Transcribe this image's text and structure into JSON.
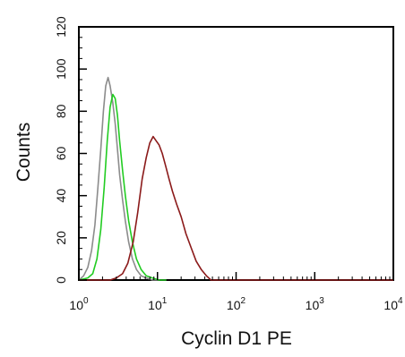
{
  "chart_data": {
    "type": "line",
    "title": "",
    "xlabel": "Cyclin D1 PE",
    "ylabel": "Counts",
    "x_scale": "log",
    "xlim": [
      1,
      10000
    ],
    "ylim": [
      0,
      120
    ],
    "grid": false,
    "x_ticks": [
      {
        "value": 1,
        "base": "10",
        "exp": "0"
      },
      {
        "value": 10,
        "base": "10",
        "exp": "1"
      },
      {
        "value": 100,
        "base": "10",
        "exp": "2"
      },
      {
        "value": 1000,
        "base": "10",
        "exp": "3"
      },
      {
        "value": 10000,
        "base": "10",
        "exp": "4"
      }
    ],
    "y_ticks": [
      "0",
      "20",
      "40",
      "60",
      "80",
      "100",
      "120"
    ],
    "series": [
      {
        "color": "#8c8c8c",
        "x": [
          1.0,
          1.15,
          1.3,
          1.45,
          1.6,
          1.75,
          1.9,
          2.05,
          2.2,
          2.35,
          2.5,
          2.7,
          2.9,
          3.1,
          3.3,
          3.6,
          3.9,
          4.3,
          4.8,
          5.4,
          6.2,
          7.2,
          8.6,
          10.5
        ],
        "y": [
          0,
          2,
          6,
          14,
          26,
          44,
          62,
          80,
          92,
          96,
          92,
          84,
          74,
          62,
          50,
          38,
          28,
          18,
          10,
          5,
          2,
          1,
          0,
          0
        ]
      },
      {
        "color": "#22cc22",
        "x": [
          1.0,
          1.3,
          1.5,
          1.7,
          1.9,
          2.1,
          2.3,
          2.5,
          2.7,
          2.9,
          3.1,
          3.3,
          3.6,
          3.9,
          4.3,
          4.8,
          5.4,
          6.2,
          7.2,
          8.6,
          10.5,
          13
        ],
        "y": [
          0,
          1,
          3,
          10,
          24,
          44,
          66,
          82,
          88,
          86,
          78,
          66,
          52,
          40,
          28,
          18,
          10,
          5,
          2,
          1,
          0,
          0
        ]
      },
      {
        "color": "#8b1a1a",
        "x": [
          1.0,
          2.5,
          3.0,
          3.6,
          4.2,
          4.9,
          5.6,
          6.4,
          7.2,
          8.0,
          8.8,
          9.6,
          10.5,
          11.5,
          12.7,
          14.0,
          15.5,
          17.5,
          20,
          23,
          27,
          31,
          36,
          42,
          48,
          10000
        ],
        "y": [
          0,
          0,
          1,
          3,
          8,
          18,
          32,
          48,
          58,
          65,
          68,
          66,
          64,
          60,
          54,
          48,
          42,
          36,
          30,
          22,
          15,
          9,
          5,
          2,
          0,
          0
        ]
      }
    ]
  }
}
